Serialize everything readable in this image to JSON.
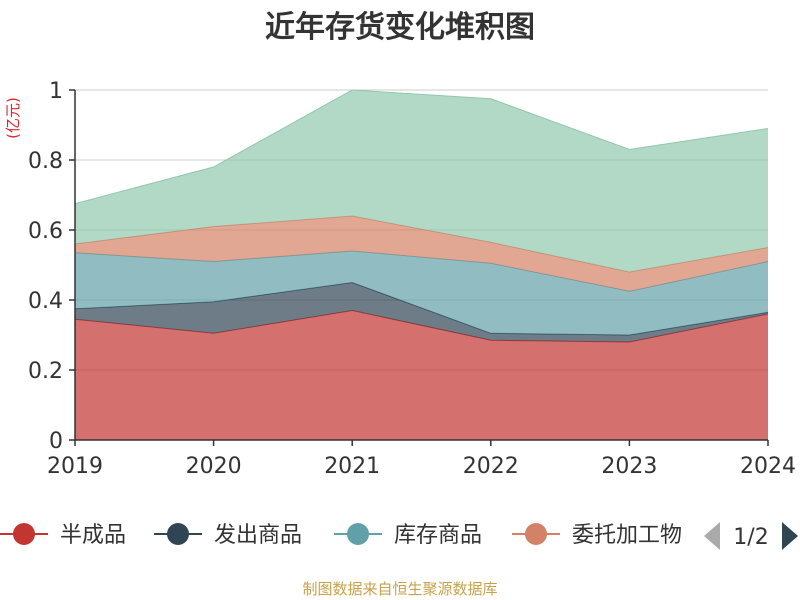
{
  "chart_data": {
    "type": "area",
    "stacked": true,
    "title": "近年存货变化堆积图",
    "unit_label": "(亿元)",
    "x": [
      "2019",
      "2020",
      "2021",
      "2022",
      "2023",
      "2024"
    ],
    "y_ticks": [
      "0",
      "0.2",
      "0.4",
      "0.6",
      "0.8",
      "1"
    ],
    "ylim": [
      0,
      1
    ],
    "grid": true,
    "series": [
      {
        "name": "半成品",
        "color": "#c23531",
        "values": [
          0.345,
          0.305,
          0.37,
          0.285,
          0.28,
          0.36
        ]
      },
      {
        "name": "发出商品",
        "color": "#2f4554",
        "values": [
          0.03,
          0.09,
          0.08,
          0.02,
          0.02,
          0.005
        ]
      },
      {
        "name": "库存商品",
        "color": "#61a0a8",
        "values": [
          0.16,
          0.115,
          0.09,
          0.2,
          0.125,
          0.145
        ]
      },
      {
        "name": "委托加工物资",
        "color": "#d48265",
        "values": [
          0.025,
          0.1,
          0.1,
          0.06,
          0.055,
          0.04
        ]
      },
      {
        "name": "",
        "color": "#91c7ae",
        "values": [
          0.115,
          0.17,
          0.36,
          0.41,
          0.35,
          0.34
        ]
      }
    ],
    "legend": {
      "position": "bottom",
      "items": [
        "半成品",
        "发出商品",
        "库存商品",
        "委托加工物"
      ],
      "page": "1/2"
    },
    "source": "制图数据来自恒生聚源数据库"
  }
}
